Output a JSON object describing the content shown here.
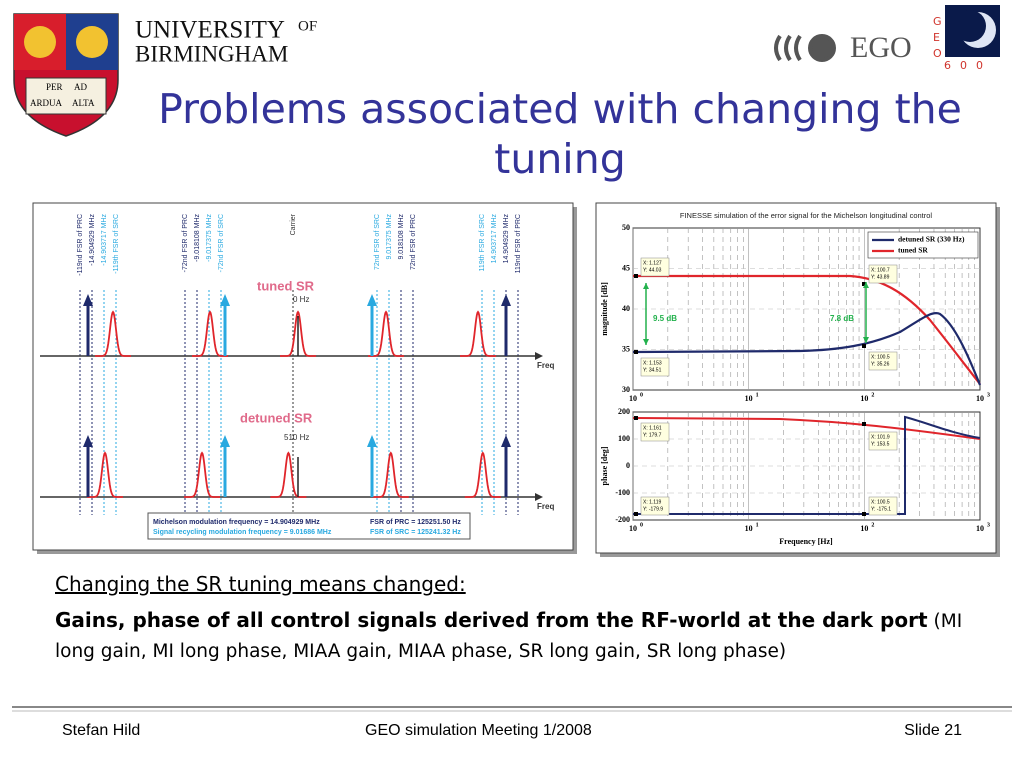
{
  "header": {
    "university": "UNIVERSITY",
    "of": "OF",
    "birmingham": "BIRMINGHAM",
    "crest": [
      "PER",
      "AD",
      "ARDUA",
      "ALTA"
    ],
    "ego": "EGO",
    "geo": [
      "G",
      "E",
      "O"
    ],
    "geo_600": [
      "6",
      "0",
      "0"
    ]
  },
  "title": "Problems associated with changing the tuning",
  "left_figure": {
    "tuned": "tuned SR",
    "tuned_offset": "0 Hz",
    "detuned": "detuned SR",
    "detuned_offset": "510 Hz",
    "axis": "Freq",
    "line_labels": [
      [
        "-119nd FSR of PRC",
        "-14.904929 MHz",
        "-14.903717 MHz",
        "-119th FSR of SRC"
      ],
      [
        "-72nd FSR of PRC",
        "-9.018108 MHz",
        "-9.017375 MHz",
        "-72nd FSR of SRC"
      ],
      [
        "Carrier"
      ],
      [
        "72nd FSR of SRC",
        "9.017375 MHz",
        "9.018108 MHz",
        "72nd FSR of PRC"
      ],
      [
        "119th FSR of SRC",
        "14.903717 MHz",
        "14.904929 MHz",
        "119nd FSR of PRC"
      ]
    ],
    "legend": [
      [
        "Michelson modulation frequency = 14.904929 MHz",
        "FSR of PRC = 125251.50 Hz"
      ],
      [
        "Signal recycling modulation frequency = 9.01686 MHz",
        "FSR of SRC = 125241.32 Hz"
      ]
    ]
  },
  "right_figure": {
    "title": "FINESSE simulation of the error signal for the Michelson longitudinal control",
    "legend": [
      "detuned SR (330 Hz)",
      "tuned SR"
    ],
    "magnitude": {
      "ylabel": "magnitude [dB]",
      "yticks": [
        "50",
        "45",
        "40",
        "35",
        "30"
      ],
      "annotations": [
        "9.5 dB",
        "7.8 dB"
      ],
      "datatips": [
        [
          "X: 1.127",
          "Y: 44.03"
        ],
        [
          "X: 100.7",
          "Y: 43.89"
        ],
        [
          "X: 1.153",
          "Y: 34.51"
        ],
        [
          "X: 100.5",
          "Y: 35.26"
        ]
      ]
    },
    "phase": {
      "ylabel": "phase [deg]",
      "yticks": [
        "200",
        "100",
        "0",
        "-100",
        "-200"
      ],
      "datatips": [
        [
          "X: 1.161",
          "Y: 179.7"
        ],
        [
          "X: 101.9",
          "Y: 153.5"
        ],
        [
          "X: 1.119",
          "Y: -179.9"
        ],
        [
          "X: 100.5",
          "Y: -175.1"
        ]
      ]
    },
    "xtick_base": "10",
    "xtick_exponents": [
      "0",
      "1",
      "2",
      "3"
    ],
    "xlabel": "Frequency [Hz]"
  },
  "body": {
    "lead": "Changing the SR tuning means changed:",
    "bold": "Gains, phase of all control signals derived from the RF-world at the dark port",
    "normal": "(MI long gain, MI long phase, MIAA gain, MIAA phase, SR long gain, SR long phase)"
  },
  "footer": {
    "author": "Stefan Hild",
    "meeting": "GEO simulation Meeting 1/2008",
    "slide": "Slide 21"
  }
}
